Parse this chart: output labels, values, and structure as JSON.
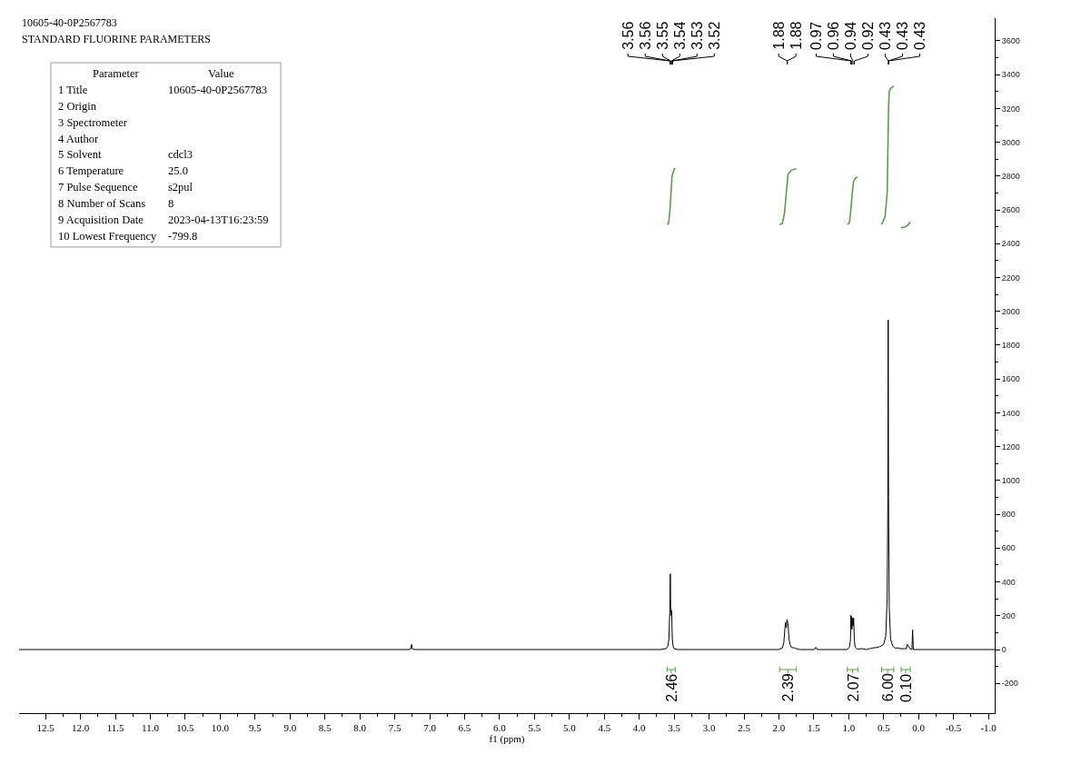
{
  "chart_data": [
    {
      "type": "line",
      "title": "10605-40-0P2567783",
      "subtitle": "STANDARD FLUORINE PARAMETERS",
      "xlabel": "f1 (ppm)",
      "xlim": [
        12.88,
        -1.09
      ],
      "ylim": [
        -376,
        3734
      ],
      "xticks": [
        12.5,
        {
          "value": 12,
          "label": "12.0"
        },
        11.5,
        {
          "value": 11,
          "label": "11.0"
        },
        10.5,
        {
          "value": 10,
          "label": "10.0"
        },
        9.5,
        {
          "value": 9,
          "label": "9.0"
        },
        8.5,
        {
          "value": 8,
          "label": "8.0"
        },
        7.5,
        {
          "value": 7,
          "label": "7.0"
        },
        6.5,
        {
          "value": 6,
          "label": "6.0"
        },
        5.5,
        {
          "value": 5,
          "label": "5.0"
        },
        4.5,
        {
          "value": 4,
          "label": "4.0"
        },
        3.5,
        {
          "value": 3,
          "label": "3.0"
        },
        2.5,
        {
          "value": 2,
          "label": "2.0"
        },
        1.5,
        {
          "value": 1,
          "label": "1.0"
        },
        0.5,
        {
          "value": 0,
          "label": "0.0"
        },
        -0.5,
        {
          "value": -1,
          "label": "-1.0"
        }
      ],
      "yticks": [
        -200,
        0,
        200,
        400,
        600,
        800,
        1000,
        1200,
        1400,
        1600,
        1800,
        2000,
        2200,
        2400,
        2600,
        2800,
        3000,
        3200,
        3400,
        3600
      ],
      "series": [
        {
          "color": "#000000",
          "x": [
            12.88,
            7.3,
            7.27,
            7.26,
            7.25,
            7.22,
            3.7,
            3.62,
            3.59,
            3.575,
            3.565,
            3.56,
            3.555,
            3.55,
            3.545,
            3.54,
            3.535,
            3.53,
            3.525,
            3.515,
            3.5,
            3.45,
            2.0,
            1.95,
            1.93,
            1.915,
            1.905,
            1.895,
            1.885,
            1.875,
            1.865,
            1.855,
            1.84,
            1.82,
            1.78,
            1.74,
            1.7,
            1.49,
            1.47,
            1.45,
            1.02,
            0.99,
            0.975,
            0.97,
            0.965,
            0.96,
            0.955,
            0.945,
            0.94,
            0.935,
            0.93,
            0.92,
            0.91,
            0.88,
            0.8,
            0.75,
            0.7,
            0.65,
            0.6,
            0.55,
            0.5,
            0.47,
            0.45,
            0.44,
            0.435,
            0.43,
            0.42,
            0.4,
            0.37,
            0.33,
            0.3,
            0.25,
            0.2,
            0.175,
            0.165,
            0.12,
            0.095,
            0.085,
            0.075,
            0.05,
            -1.09
          ],
          "values": [
            0,
            0,
            5,
            30,
            5,
            0,
            0,
            5,
            20,
            60,
            200,
            240,
            448,
            230,
            240,
            200,
            230,
            120,
            60,
            20,
            5,
            0,
            0,
            10,
            40,
            120,
            160,
            130,
            177,
            165,
            120,
            60,
            30,
            12,
            10,
            3,
            0,
            0,
            14,
            0,
            0,
            15,
            60,
            202,
            150,
            195,
            120,
            160,
            188,
            140,
            185,
            60,
            15,
            3,
            5,
            0,
            5,
            10,
            12,
            18,
            30,
            80,
            300,
            900,
            1950,
            900,
            250,
            60,
            20,
            8,
            10,
            5,
            5,
            5,
            30,
            5,
            0,
            116,
            0,
            0,
            0
          ]
        },
        {
          "color": "#5a9e4b",
          "x": [
            3.6,
            3.58,
            3.56,
            3.545,
            3.53,
            3.5,
            3.485
          ],
          "values": [
            2513,
            2520,
            2600,
            2700,
            2800,
            2840,
            2848
          ]
        },
        {
          "color": "#5a9e4b",
          "x": [
            1.99,
            1.95,
            1.92,
            1.89,
            1.87,
            1.82,
            1.75
          ],
          "values": [
            2513,
            2520,
            2580,
            2720,
            2810,
            2835,
            2844
          ]
        },
        {
          "color": "#5a9e4b",
          "x": [
            1.02,
            0.99,
            0.97,
            0.95,
            0.93,
            0.9,
            0.87
          ],
          "values": [
            2513,
            2525,
            2600,
            2700,
            2770,
            2790,
            2794
          ]
        },
        {
          "color": "#5a9e4b",
          "x": [
            0.53,
            0.48,
            0.45,
            0.44,
            0.43,
            0.42,
            0.4,
            0.355
          ],
          "values": [
            2513,
            2560,
            2700,
            2950,
            3200,
            3300,
            3320,
            3331
          ]
        },
        {
          "color": "#5a9e4b",
          "x": [
            0.25,
            0.23,
            0.21,
            0.19,
            0.17,
            0.15,
            0.135,
            0.12
          ],
          "values": [
            2495,
            2496,
            2498,
            2500,
            2505,
            2512,
            2520,
            2530
          ]
        }
      ],
      "annotations": [
        {
          "text": "3.56",
          "x": 3.56
        },
        {
          "text": "3.56",
          "x": 3.56
        },
        {
          "text": "3.55",
          "x": 3.55
        },
        {
          "text": "3.54",
          "x": 3.54
        },
        {
          "text": "3.53",
          "x": 3.53
        },
        {
          "text": "3.52",
          "x": 3.52
        },
        {
          "text": "1.88",
          "x": 1.88
        },
        {
          "text": "1.88",
          "x": 1.88
        },
        {
          "text": "0.97",
          "x": 0.97
        },
        {
          "text": "0.96",
          "x": 0.96
        },
        {
          "text": "0.94",
          "x": 0.94
        },
        {
          "text": "0.92",
          "x": 0.92
        },
        {
          "text": "0.43",
          "x": 0.43
        },
        {
          "text": "0.43",
          "x": 0.43
        },
        {
          "text": "0.43",
          "x": 0.43
        },
        "2.46",
        "2.39",
        "2.07",
        "6.00",
        "0.10"
      ]
    },
    {
      "type": "other",
      "categories": [
        "Parameter",
        "Value"
      ],
      "cell_labels": [
        [
          "1 Title",
          "10605-40-0P2567783"
        ],
        [
          "2 Origin",
          null
        ],
        [
          "3 Spectrometer",
          null
        ],
        [
          "4 Author",
          null
        ],
        [
          "5 Solvent",
          "cdcl3"
        ],
        [
          "6 Temperature",
          "25.0"
        ],
        [
          "7 Pulse Sequence",
          "s2pul"
        ],
        [
          "8 Number of Scans",
          "8"
        ],
        [
          "9 Acquisition Date",
          "2023-04-13T16:23:59"
        ],
        [
          "10 Lowest Frequency",
          "-799.8"
        ]
      ]
    }
  ]
}
